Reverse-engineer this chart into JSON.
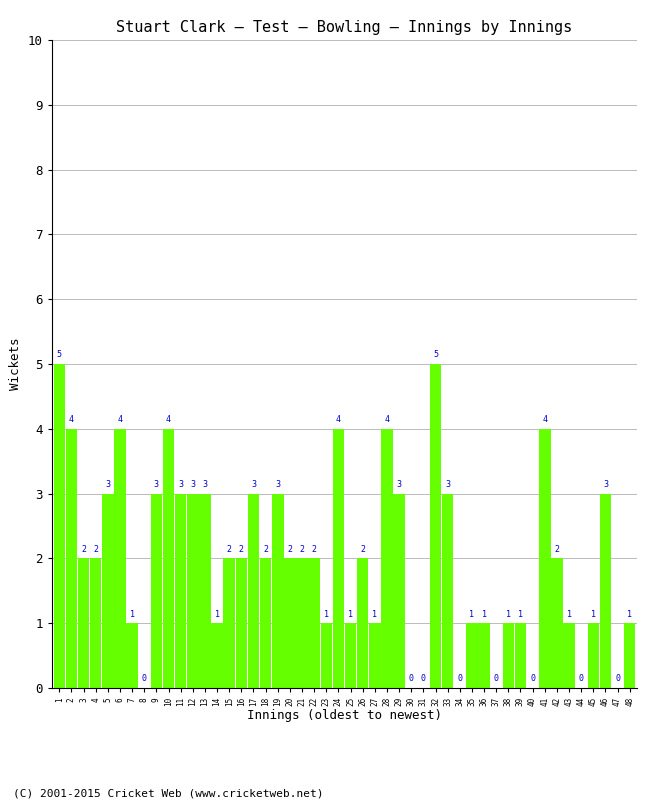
{
  "title": "Stuart Clark – Test – Bowling – Innings by Innings",
  "xlabel": "Innings (oldest to newest)",
  "ylabel": "Wickets",
  "ylim": [
    0,
    10
  ],
  "yticks": [
    0,
    1,
    2,
    3,
    4,
    5,
    6,
    7,
    8,
    9,
    10
  ],
  "bar_color": "#66ff00",
  "label_color": "#0000cc",
  "background_color": "#ffffff",
  "grid_color": "#bbbbbb",
  "footer": "(C) 2001-2015 Cricket Web (www.cricketweb.net)",
  "innings": [
    1,
    2,
    3,
    4,
    5,
    6,
    7,
    8,
    9,
    10,
    11,
    12,
    13,
    14,
    15,
    16,
    17,
    18,
    19,
    20,
    21,
    22,
    23,
    24,
    25,
    26,
    27,
    28,
    29,
    30,
    31,
    32,
    33,
    34,
    35,
    36,
    37,
    38,
    39,
    40,
    41,
    42,
    43,
    44,
    45,
    46,
    47,
    48
  ],
  "wickets": [
    5,
    4,
    2,
    2,
    3,
    4,
    1,
    0,
    3,
    4,
    3,
    3,
    3,
    1,
    2,
    2,
    3,
    2,
    3,
    2,
    2,
    2,
    1,
    4,
    1,
    2,
    1,
    4,
    3,
    0,
    0,
    5,
    3,
    0,
    1,
    1,
    0,
    1,
    1,
    0,
    4,
    2,
    1,
    0,
    1,
    3,
    0,
    1
  ]
}
